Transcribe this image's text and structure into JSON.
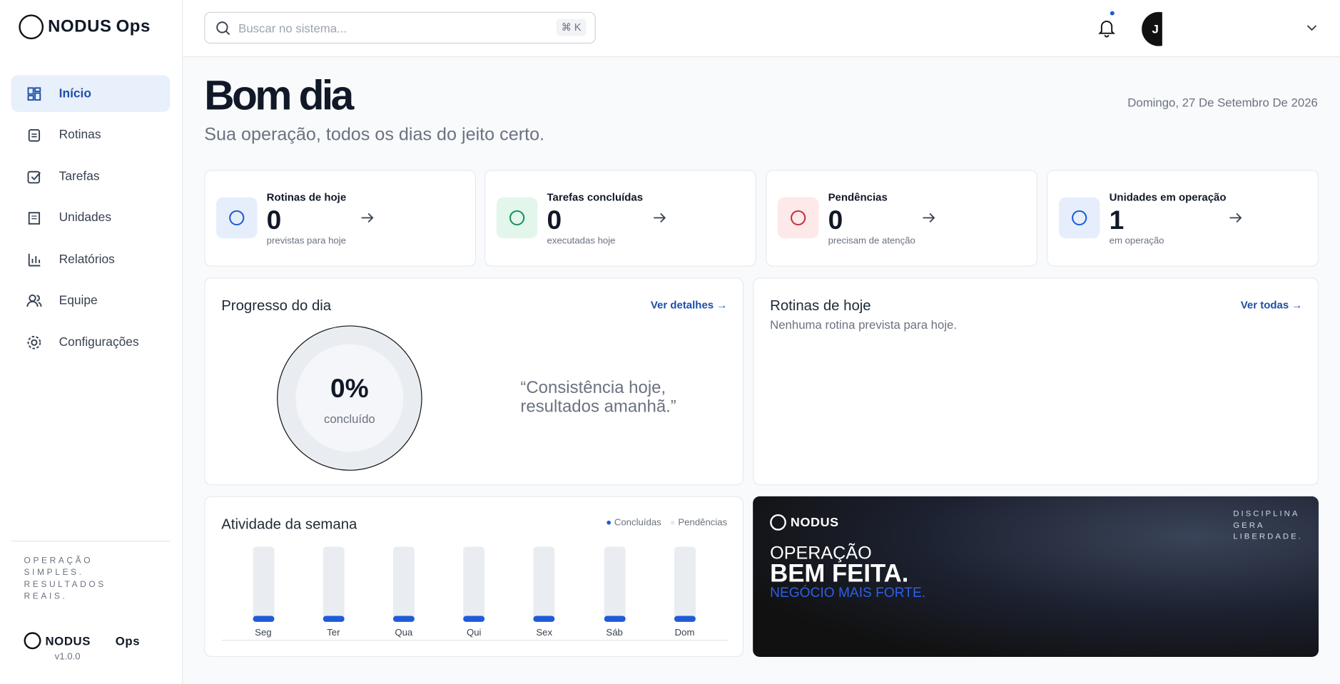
{
  "sidebar": {
    "brand": "NODUS",
    "brand_suffix": "Ops",
    "nav": [
      "Início",
      "Rotinas",
      "Tarefas",
      "Unidades",
      "Relatórios",
      "Equipe",
      "Configurações"
    ],
    "tagline": "OPERAÇÃO SIMPLES. RESULTADOS REAIS.",
    "footer_brand": "NODUS",
    "footer_suffix": "Ops",
    "version": "v1.0.0"
  },
  "header": {
    "search_placeholder": "Buscar no sistema...",
    "shortcut": "⌘ K",
    "avatar": "J"
  },
  "greeting": {
    "title": "Bom dia",
    "subtitle": "Sua operação, todos os dias do jeito certo.",
    "date": "Domingo, 27 De Setembro De 2026"
  },
  "stats": [
    {
      "label": "Rotinas de hoje",
      "value": 0,
      "note": "previstas para hoje"
    },
    {
      "label": "Tarefas concluídas",
      "value": 0,
      "note": "executadas hoje"
    },
    {
      "label": "Pendências",
      "value": 0,
      "note": "precisam de atenção"
    },
    {
      "label": "Unidades em operação",
      "value": 1,
      "note": "em operação"
    }
  ],
  "progress": {
    "title": "Progresso do dia",
    "link": "Ver detalhes",
    "percent": "0%",
    "caption": "concluído",
    "quote": "“Consistência hoje, resultados amanhã.”"
  },
  "routines": {
    "title": "Rotinas de hoje",
    "link": "Ver todas",
    "empty": "Nenhuma rotina prevista para hoje."
  },
  "activity": {
    "title": "Atividade da semana",
    "legend": [
      "Concluídas",
      "Pendências"
    ],
    "days": [
      "Seg",
      "Ter",
      "Qua",
      "Qui",
      "Sex",
      "Sáb",
      "Dom"
    ]
  },
  "banner": {
    "brand": "NODUS",
    "motto": "DISCIPLINA GERA LIBERDADE.",
    "line1": "OPERAÇÃO",
    "line2": "BEM FEITA.",
    "line3": "NEGÓCIO MAIS FORTE."
  }
}
